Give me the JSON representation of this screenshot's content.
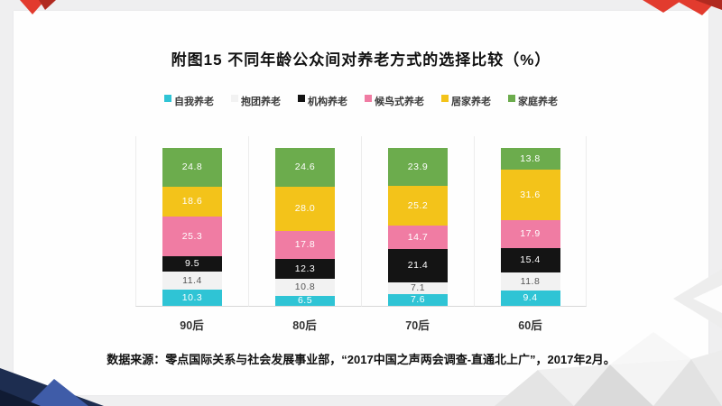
{
  "page": {
    "background": "#efeff0",
    "title": "附图15 不同年龄公众间对养老方式的选择比较（%）",
    "source": "数据来源：零点国际关系与社会发展事业部，“2017中国之声两会调查-直通北上广”，2017年2月。"
  },
  "decor": {
    "red": "#e23b2e",
    "red_dark": "#b02a20",
    "navy": "#1d2d50",
    "navy_dark": "#101b33",
    "blue": "#3f5ca8"
  },
  "chart_data": {
    "type": "bar",
    "variant": "stacked-100",
    "unit": "%",
    "legend_position": "top",
    "grid": false,
    "ylim": [
      0,
      100
    ],
    "categories": [
      "90后",
      "80后",
      "70后",
      "60后"
    ],
    "stack_order": "bottom-to-top",
    "series": [
      {
        "name": "自我养老",
        "color": "#2fc4d5",
        "label_color": "#ffffff",
        "values": [
          10.3,
          6.5,
          7.6,
          9.4
        ]
      },
      {
        "name": "抱团养老",
        "color": "#f2f2f2",
        "label_color": "#555555",
        "values": [
          11.4,
          10.8,
          7.1,
          11.8
        ]
      },
      {
        "name": "机构养老",
        "color": "#141414",
        "label_color": "#ffffff",
        "values": [
          9.5,
          12.3,
          21.4,
          15.4
        ]
      },
      {
        "name": "候鸟式养老",
        "color": "#f07ca3",
        "label_color": "#ffffff",
        "values": [
          25.3,
          17.8,
          14.7,
          17.9
        ]
      },
      {
        "name": "居家养老",
        "color": "#f3c31a",
        "label_color": "#ffffff",
        "values": [
          18.6,
          28.0,
          25.2,
          31.6
        ]
      },
      {
        "name": "家庭养老",
        "color": "#6cac4d",
        "label_color": "#ffffff",
        "values": [
          24.8,
          24.6,
          23.9,
          13.8
        ]
      }
    ]
  }
}
